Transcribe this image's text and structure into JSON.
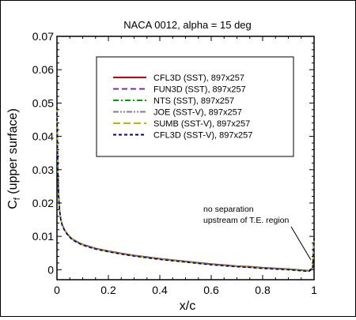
{
  "chart_data": {
    "type": "line",
    "title": "NACA 0012, alpha = 15 deg",
    "xlabel": "x/c",
    "ylabel_main": "C",
    "ylabel_sub": "f",
    "ylabel_rest": " (upper surface)",
    "xlim": [
      0,
      1
    ],
    "ylim": [
      -0.003,
      0.07
    ],
    "x_ticks": [
      "0",
      "0.2",
      "0.4",
      "0.6",
      "0.8",
      "1"
    ],
    "x_tick_values": [
      0,
      0.2,
      0.4,
      0.6,
      0.8,
      1
    ],
    "y_ticks": [
      "0",
      "0.01",
      "0.02",
      "0.03",
      "0.04",
      "0.05",
      "0.06",
      "0.07"
    ],
    "y_tick_values": [
      0,
      0.01,
      0.02,
      0.03,
      0.04,
      0.05,
      0.06,
      0.07
    ],
    "grid": false,
    "legend_position": "top-right",
    "annotation": {
      "lines": [
        "no separation",
        "upstream of T.E. region"
      ],
      "points_to": [
        1.0,
        0.0
      ]
    },
    "series": [
      {
        "name": "CFL3D (SST), 897x257",
        "color": "#d40000",
        "dash": "solid"
      },
      {
        "name": "FUN3D (SST), 897x257",
        "color": "#7030a0",
        "dash": "long"
      },
      {
        "name": "NTS (SST), 897x257",
        "color": "#00a000",
        "dash": "dashdot"
      },
      {
        "name": "JOE (SST-V), 897x257",
        "color": "#808080",
        "dash": "dashdotdot"
      },
      {
        "name": "SUMB (SST-V), 897x257",
        "color": "#b8b800",
        "dash": "longdash"
      },
      {
        "name": "CFL3D (SST-V), 897x257",
        "color": "#000080",
        "dash": "short"
      }
    ],
    "x": [
      0.0,
      0.001,
      0.003,
      0.006,
      0.01,
      0.015,
      0.02,
      0.03,
      0.04,
      0.05,
      0.06,
      0.08,
      0.1,
      0.12,
      0.15,
      0.2,
      0.25,
      0.3,
      0.35,
      0.4,
      0.45,
      0.5,
      0.55,
      0.6,
      0.65,
      0.7,
      0.75,
      0.8,
      0.85,
      0.9,
      0.95,
      0.98,
      0.995,
      1.0
    ],
    "y": [
      0.049,
      0.042,
      0.031,
      0.023,
      0.018,
      0.015,
      0.0135,
      0.0118,
      0.0107,
      0.0098,
      0.0091,
      0.0082,
      0.0075,
      0.007,
      0.0063,
      0.0055,
      0.0048,
      0.0042,
      0.0037,
      0.0032,
      0.0028,
      0.0024,
      0.002,
      0.0016,
      0.0013,
      0.001,
      0.0008,
      0.0005,
      0.0003,
      0.0001,
      -0.0002,
      -0.0004,
      0.0005,
      0.0098
    ]
  }
}
